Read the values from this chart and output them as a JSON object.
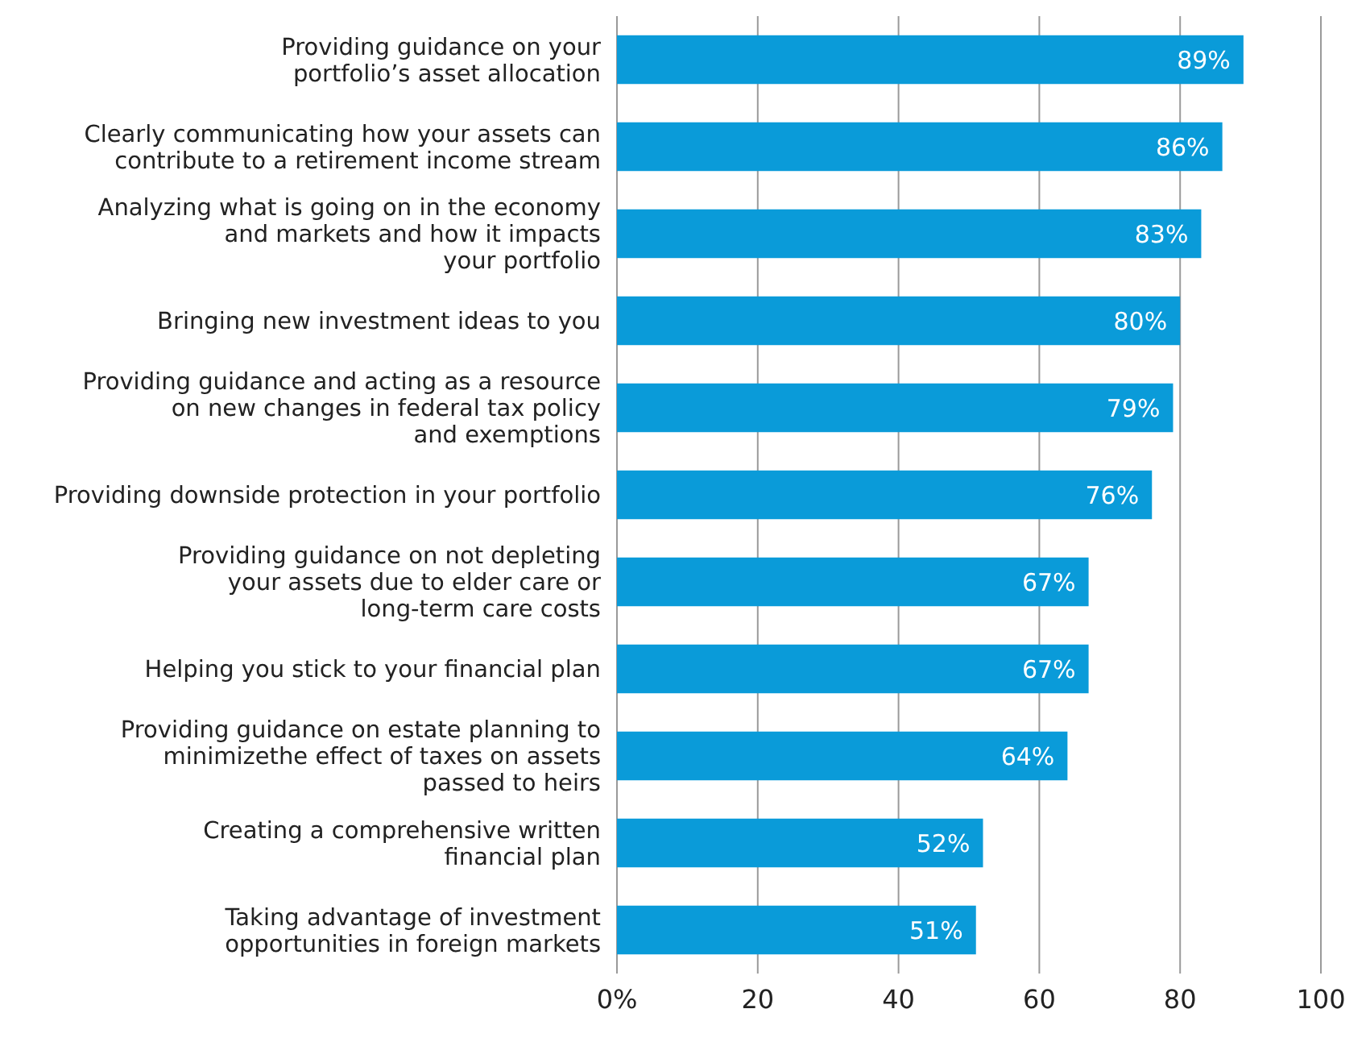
{
  "chart_data": {
    "type": "bar",
    "orientation": "horizontal",
    "categories": [
      "Providing guidance on your\nportfolio’s asset allocation",
      "Clearly communicating how your assets can\ncontribute to a retirement income stream",
      "Analyzing what is going on in the economy\nand markets and how it impacts\nyour portfolio",
      "Bringing new investment ideas to you",
      "Providing guidance and acting as a resource\non new changes in federal tax policy\nand exemptions",
      "Providing downside protection in your portfolio",
      "Providing guidance on not depleting\nyour assets due to elder care or\nlong-term care costs",
      "Helping you stick to your financial plan",
      "Providing guidance on estate planning to\nminimizethe effect of taxes on assets\npassed to heirs",
      "Creating a comprehensive written\nfinancial plan",
      "Taking advantage of investment\nopportunities in foreign markets"
    ],
    "values": [
      89,
      86,
      83,
      80,
      79,
      76,
      67,
      67,
      64,
      52,
      51
    ],
    "value_labels": [
      "89%",
      "86%",
      "83%",
      "80%",
      "79%",
      "76%",
      "67%",
      "67%",
      "64%",
      "52%",
      "51%"
    ],
    "color": "#0a9bd9",
    "xlim": [
      0,
      100
    ],
    "xticks": [
      {
        "value": 0,
        "label": "0%"
      },
      20,
      40,
      60,
      80,
      100
    ],
    "grid": "x"
  }
}
